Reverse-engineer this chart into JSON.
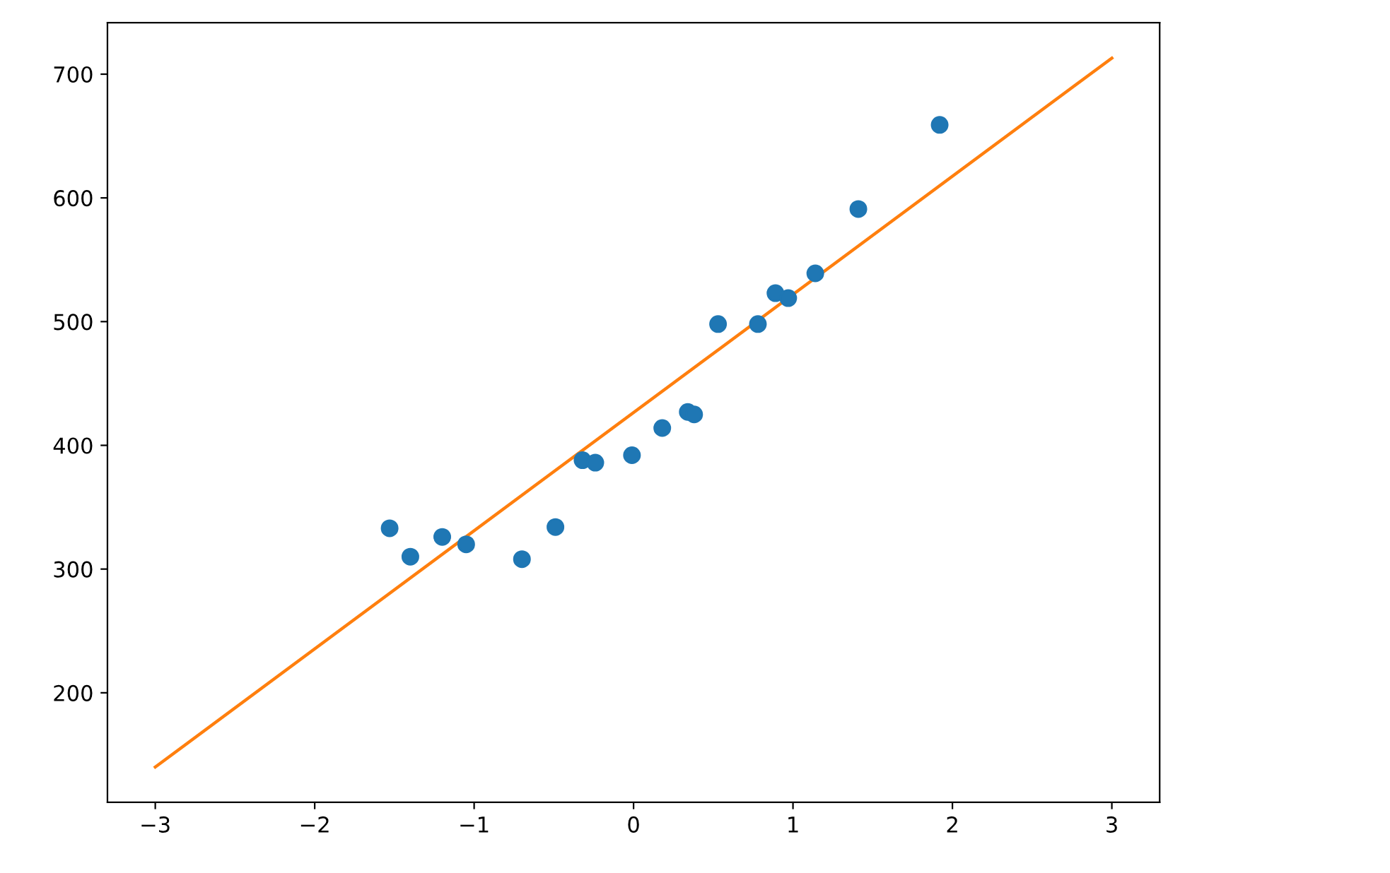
{
  "chart_data": {
    "type": "scatter",
    "xlim": [
      -3.3,
      3.3
    ],
    "ylim": [
      111.5,
      741.6
    ],
    "xticks": [
      {
        "value": -3,
        "label": "−3"
      },
      {
        "value": -2,
        "label": "−2"
      },
      {
        "value": -1,
        "label": "−1"
      },
      0,
      1,
      2,
      3
    ],
    "yticks": [
      200,
      300,
      400,
      500,
      600,
      700
    ],
    "grid": false,
    "series": [
      {
        "marker": "circle",
        "color": "#1f77b4",
        "x": [
          -1.53,
          -1.4,
          -1.2,
          -1.05,
          -0.7,
          -0.49,
          -0.32,
          -0.24,
          -0.01,
          0.18,
          0.34,
          0.38,
          0.53,
          0.78,
          0.89,
          0.97,
          1.14,
          1.41,
          1.92
        ],
        "values": [
          333,
          310,
          326,
          320,
          308,
          334,
          388,
          386,
          392,
          414,
          427,
          425,
          498,
          498,
          523,
          519,
          539,
          591,
          659
        ]
      },
      {
        "type": "line",
        "color": "#ff7f0e",
        "x": [
          -3,
          3
        ],
        "values": [
          140,
          713
        ]
      }
    ]
  }
}
